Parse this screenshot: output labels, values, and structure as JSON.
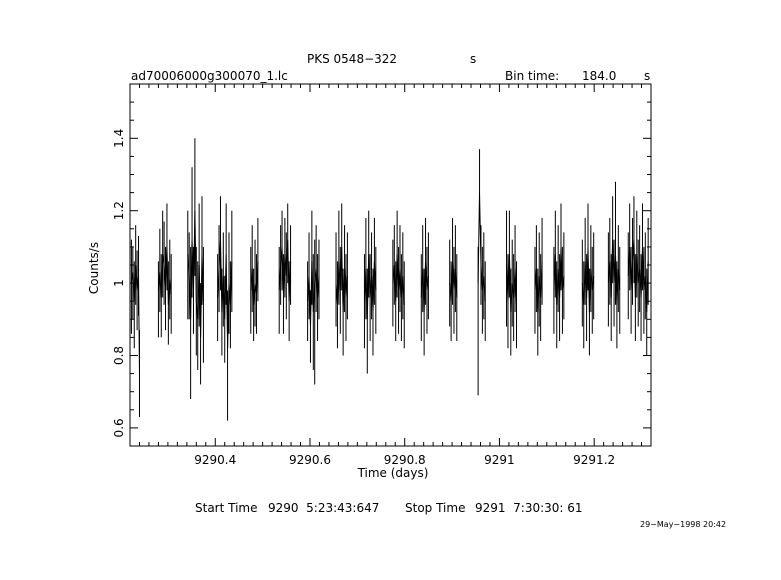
{
  "header": {
    "source": "PKS 0548−322",
    "source_unit": "s",
    "filename": "ad70006000g300070_1.lc",
    "bin_label": "Bin time:",
    "bin_value": "184.0",
    "bin_unit": "s"
  },
  "footer": {
    "start_label": "Start Time",
    "start_value": "9290  5:23:43:647",
    "stop_label": "Stop Time",
    "stop_value": "9291  7:30:30: 61",
    "date_stamp": "29−May−1998 20:42"
  },
  "chart_data": {
    "type": "line",
    "xlabel": "Time (days)",
    "ylabel": "Counts/s",
    "xlim": [
      9290.22,
      9291.32
    ],
    "ylim": [
      0.55,
      1.55
    ],
    "x_ticks": [
      9290.4,
      9290.6,
      9290.8,
      9291,
      9291.2
    ],
    "x_tick_labels": [
      "9290.4",
      "9290.6",
      "9290.8",
      "9291",
      "9291.2"
    ],
    "y_ticks": [
      0.6,
      0.8,
      1,
      1.2,
      1.4
    ],
    "y_tick_labels": [
      "0.6",
      "0.8",
      "1",
      "1.2",
      "1.4"
    ],
    "grid": false,
    "series": [
      {
        "points": [
          [
            9290.223,
            1.0,
            0.86,
            1.12
          ],
          [
            9290.226,
            1.03,
            0.9,
            1.1
          ],
          [
            9290.229,
            0.95,
            0.82,
            1.06
          ],
          [
            9290.232,
            1.05,
            0.94,
            1.16
          ],
          [
            9290.235,
            0.98,
            0.87,
            1.09
          ],
          [
            9290.238,
            1.02,
            0.91,
            1.13
          ],
          [
            9290.24,
            0.75,
            0.63,
            0.87
          ],
          [
            9290.28,
            0.98,
            0.85,
            1.06
          ],
          [
            9290.283,
            1.03,
            0.92,
            1.15
          ],
          [
            9290.286,
            0.96,
            0.85,
            1.08
          ],
          [
            9290.289,
            1.08,
            0.96,
            1.2
          ],
          [
            9290.292,
            1.05,
            0.94,
            1.17
          ],
          [
            9290.295,
            0.99,
            0.87,
            1.1
          ],
          [
            9290.298,
            1.1,
            0.98,
            1.22
          ],
          [
            9290.301,
            0.94,
            0.83,
            1.06
          ],
          [
            9290.304,
            1.01,
            0.9,
            1.12
          ],
          [
            9290.307,
            0.97,
            0.86,
            1.08
          ],
          [
            9290.342,
            1.08,
            0.9,
            1.2
          ],
          [
            9290.345,
            1.02,
            0.9,
            1.14
          ],
          [
            9290.348,
            0.9,
            0.68,
            1.1
          ],
          [
            9290.351,
            1.12,
            0.96,
            1.32
          ],
          [
            9290.354,
            0.98,
            0.86,
            1.1
          ],
          [
            9290.357,
            1.2,
            1.02,
            1.4
          ],
          [
            9290.36,
            0.95,
            0.8,
            1.1
          ],
          [
            9290.363,
            0.9,
            0.76,
            1.06
          ],
          [
            9290.366,
            1.05,
            0.88,
            1.22
          ],
          [
            9290.369,
            0.85,
            0.72,
            1.0
          ],
          [
            9290.372,
            1.08,
            0.94,
            1.24
          ],
          [
            9290.375,
            0.95,
            0.78,
            1.1
          ],
          [
            9290.405,
            0.96,
            0.84,
            1.08
          ],
          [
            9290.408,
            1.04,
            0.92,
            1.16
          ],
          [
            9290.411,
            1.12,
            0.98,
            1.24
          ],
          [
            9290.414,
            0.92,
            0.8,
            1.04
          ],
          [
            9290.417,
            1.02,
            0.88,
            1.14
          ],
          [
            9290.42,
            0.9,
            0.78,
            1.02
          ],
          [
            9290.423,
            1.08,
            0.94,
            1.22
          ],
          [
            9290.426,
            0.82,
            0.62,
            0.98
          ],
          [
            9290.429,
            1.0,
            0.86,
            1.14
          ],
          [
            9290.432,
            0.94,
            0.82,
            1.06
          ],
          [
            9290.435,
            1.06,
            0.92,
            1.2
          ],
          [
            9290.475,
            0.98,
            0.86,
            1.1
          ],
          [
            9290.478,
            1.04,
            0.92,
            1.16
          ],
          [
            9290.481,
            0.94,
            0.84,
            1.04
          ],
          [
            9290.484,
            1.0,
            0.88,
            1.12
          ],
          [
            9290.487,
            0.97,
            0.86,
            1.08
          ],
          [
            9290.49,
            1.06,
            0.95,
            1.18
          ],
          [
            9290.535,
            0.98,
            0.86,
            1.1
          ],
          [
            9290.538,
            1.05,
            0.94,
            1.16
          ],
          [
            9290.541,
            1.1,
            0.98,
            1.2
          ],
          [
            9290.544,
            0.97,
            0.86,
            1.08
          ],
          [
            9290.547,
            1.08,
            0.96,
            1.18
          ],
          [
            9290.55,
            1.02,
            0.9,
            1.14
          ],
          [
            9290.553,
            1.12,
            1.0,
            1.22
          ],
          [
            9290.556,
            0.95,
            0.84,
            1.06
          ],
          [
            9290.559,
            1.06,
            0.94,
            1.16
          ],
          [
            9290.595,
            0.95,
            0.84,
            1.06
          ],
          [
            9290.598,
            1.02,
            0.9,
            1.14
          ],
          [
            9290.601,
            0.88,
            0.78,
            0.98
          ],
          [
            9290.604,
            1.06,
            0.94,
            1.2
          ],
          [
            9290.607,
            0.92,
            0.76,
            1.08
          ],
          [
            9290.61,
            1.0,
            0.72,
            1.12
          ],
          [
            9290.613,
            1.04,
            0.92,
            1.16
          ],
          [
            9290.616,
            0.96,
            0.84,
            1.08
          ],
          [
            9290.619,
            1.02,
            0.9,
            1.12
          ],
          [
            9290.655,
            1.0,
            0.88,
            1.14
          ],
          [
            9290.658,
            0.94,
            0.82,
            1.06
          ],
          [
            9290.661,
            1.06,
            0.94,
            1.2
          ],
          [
            9290.664,
            0.98,
            0.86,
            1.1
          ],
          [
            9290.667,
            1.1,
            0.98,
            1.22
          ],
          [
            9290.67,
            0.92,
            0.8,
            1.04
          ],
          [
            9290.673,
            1.04,
            0.92,
            1.16
          ],
          [
            9290.676,
            0.96,
            0.84,
            1.08
          ],
          [
            9290.679,
            1.02,
            0.9,
            1.14
          ],
          [
            9290.715,
            0.95,
            0.82,
            1.08
          ],
          [
            9290.718,
            1.04,
            0.9,
            1.18
          ],
          [
            9290.721,
            0.9,
            0.75,
            1.04
          ],
          [
            9290.724,
            1.08,
            0.96,
            1.2
          ],
          [
            9290.727,
            0.96,
            0.84,
            1.08
          ],
          [
            9290.73,
            1.02,
            0.9,
            1.14
          ],
          [
            9290.733,
            0.92,
            0.8,
            1.04
          ],
          [
            9290.736,
            1.06,
            0.94,
            1.18
          ],
          [
            9290.739,
            0.98,
            0.86,
            1.1
          ],
          [
            9290.775,
            1.0,
            0.88,
            1.12
          ],
          [
            9290.778,
            1.05,
            0.94,
            1.16
          ],
          [
            9290.781,
            0.95,
            0.84,
            1.06
          ],
          [
            9290.784,
            1.08,
            0.96,
            1.2
          ],
          [
            9290.787,
            0.98,
            0.86,
            1.1
          ],
          [
            9290.79,
            1.04,
            0.92,
            1.16
          ],
          [
            9290.793,
            0.96,
            0.84,
            1.08
          ],
          [
            9290.796,
            1.02,
            0.9,
            1.14
          ],
          [
            9290.799,
            0.94,
            0.82,
            1.06
          ],
          [
            9290.835,
            0.96,
            0.84,
            1.08
          ],
          [
            9290.838,
            1.04,
            0.92,
            1.16
          ],
          [
            9290.841,
            0.92,
            0.8,
            1.04
          ],
          [
            9290.844,
            1.06,
            0.94,
            1.18
          ],
          [
            9290.847,
            0.98,
            0.86,
            1.1
          ],
          [
            9290.85,
            1.02,
            0.9,
            1.14
          ],
          [
            9290.895,
            1.0,
            0.88,
            1.12
          ],
          [
            9290.898,
            0.95,
            0.84,
            1.06
          ],
          [
            9290.901,
            1.06,
            0.94,
            1.18
          ],
          [
            9290.904,
            0.98,
            0.86,
            1.1
          ],
          [
            9290.907,
            1.04,
            0.92,
            1.16
          ],
          [
            9290.91,
            0.96,
            0.84,
            1.08
          ],
          [
            9290.955,
            1.0,
            0.69,
            1.1
          ],
          [
            9290.958,
            1.25,
            1.2,
            1.37
          ],
          [
            9290.961,
            1.05,
            0.94,
            1.16
          ],
          [
            9290.964,
            0.98,
            0.86,
            1.1
          ],
          [
            9290.967,
            1.02,
            0.9,
            1.14
          ],
          [
            9290.97,
            0.95,
            0.84,
            1.06
          ],
          [
            9291.015,
            1.05,
            0.88,
            1.2
          ],
          [
            9291.018,
            0.95,
            0.82,
            1.08
          ],
          [
            9291.021,
            1.08,
            0.96,
            1.2
          ],
          [
            9291.024,
            0.92,
            0.8,
            1.04
          ],
          [
            9291.027,
            1.0,
            0.88,
            1.12
          ],
          [
            9291.03,
            0.96,
            0.84,
            1.08
          ],
          [
            9291.033,
            1.04,
            0.92,
            1.16
          ],
          [
            9291.036,
            0.94,
            0.82,
            1.06
          ],
          [
            9291.075,
            0.98,
            0.86,
            1.1
          ],
          [
            9291.078,
            1.04,
            0.92,
            1.16
          ],
          [
            9291.081,
            0.92,
            0.8,
            1.04
          ],
          [
            9291.084,
            1.02,
            0.88,
            1.14
          ],
          [
            9291.087,
            0.96,
            0.84,
            1.08
          ],
          [
            9291.09,
            1.06,
            0.94,
            1.18
          ],
          [
            9291.115,
            0.98,
            0.86,
            1.1
          ],
          [
            9291.118,
            1.08,
            0.96,
            1.2
          ],
          [
            9291.121,
            0.94,
            0.82,
            1.06
          ],
          [
            9291.124,
            1.04,
            0.92,
            1.16
          ],
          [
            9291.127,
            0.96,
            0.84,
            1.08
          ],
          [
            9291.13,
            1.1,
            0.98,
            1.22
          ],
          [
            9291.133,
            0.98,
            0.86,
            1.1
          ],
          [
            9291.136,
            1.02,
            0.9,
            1.14
          ],
          [
            9291.175,
            1.0,
            0.88,
            1.12
          ],
          [
            9291.178,
            0.94,
            0.82,
            1.06
          ],
          [
            9291.181,
            1.06,
            0.94,
            1.18
          ],
          [
            9291.184,
            0.96,
            0.84,
            1.08
          ],
          [
            9291.187,
            1.1,
            0.98,
            1.22
          ],
          [
            9291.19,
            0.92,
            0.8,
            1.04
          ],
          [
            9291.193,
            1.04,
            0.92,
            1.16
          ],
          [
            9291.196,
            0.98,
            0.86,
            1.1
          ],
          [
            9291.199,
            1.02,
            0.9,
            1.14
          ],
          [
            9291.23,
            1.0,
            0.88,
            1.14
          ],
          [
            9291.233,
            1.06,
            0.94,
            1.18
          ],
          [
            9291.236,
            0.96,
            0.84,
            1.08
          ],
          [
            9291.239,
            1.12,
            1.0,
            1.24
          ],
          [
            9291.242,
            1.0,
            0.88,
            1.12
          ],
          [
            9291.245,
            1.08,
            0.94,
            1.28
          ],
          [
            9291.248,
            0.94,
            0.82,
            1.06
          ],
          [
            9291.251,
            1.04,
            0.92,
            1.16
          ],
          [
            9291.254,
            0.98,
            0.86,
            1.1
          ],
          [
            9291.272,
            1.02,
            0.9,
            1.14
          ],
          [
            9291.275,
            1.1,
            0.98,
            1.22
          ],
          [
            9291.278,
            0.98,
            0.86,
            1.1
          ],
          [
            9291.281,
            1.06,
            0.94,
            1.18
          ],
          [
            9291.284,
            1.12,
            1.0,
            1.24
          ],
          [
            9291.287,
            0.96,
            0.84,
            1.08
          ],
          [
            9291.29,
            1.08,
            0.96,
            1.2
          ],
          [
            9291.293,
            1.0,
            0.88,
            1.12
          ],
          [
            9291.296,
            1.04,
            0.92,
            1.16
          ],
          [
            9291.299,
            0.96,
            0.84,
            1.08
          ],
          [
            9291.302,
            1.1,
            0.98,
            1.22
          ],
          [
            9291.305,
            0.98,
            0.86,
            1.1
          ],
          [
            9291.308,
            1.02,
            0.9,
            1.14
          ],
          [
            9291.311,
            0.92,
            0.8,
            1.04
          ],
          [
            9291.314,
            1.06,
            0.94,
            1.18
          ]
        ]
      }
    ]
  }
}
